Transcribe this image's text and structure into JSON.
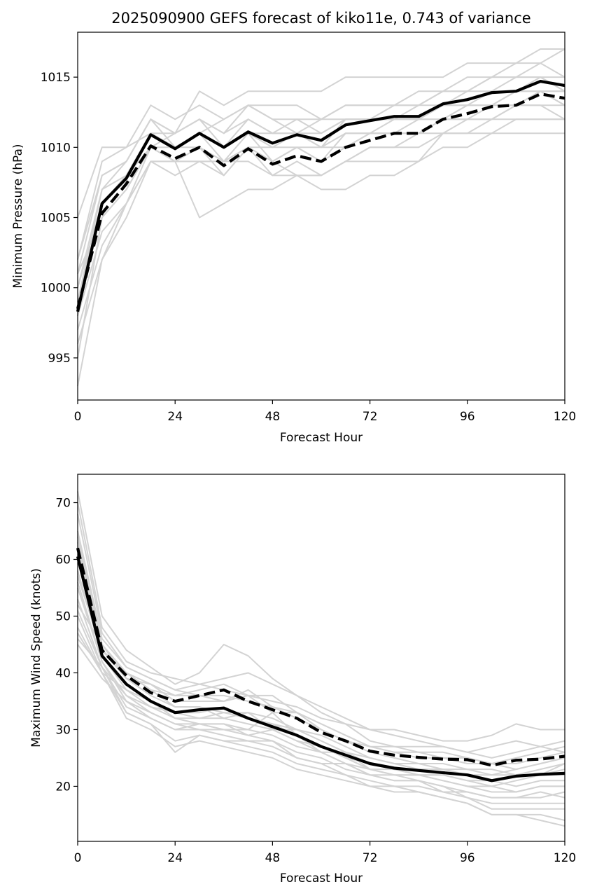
{
  "figure": {
    "title": "2025090900 GEFS forecast of kiko11e, 0.743 of variance"
  },
  "colors": {
    "member": "#d3d3d3",
    "mean": "#000000",
    "background": "#ffffff"
  },
  "chart_data": [
    {
      "type": "line",
      "name": "pressure",
      "title": "2025090900 GEFS forecast of kiko11e, 0.743 of variance",
      "xlabel": "Forecast Hour",
      "ylabel": "Minimum Pressure (hPa)",
      "xlim": [
        0,
        120
      ],
      "ylim": [
        992,
        1018.2
      ],
      "xticks": [
        0,
        24,
        48,
        72,
        96,
        120
      ],
      "yticks": [
        995,
        1000,
        1005,
        1010,
        1015
      ],
      "x": [
        0,
        6,
        12,
        18,
        24,
        30,
        36,
        42,
        48,
        54,
        60,
        66,
        72,
        78,
        84,
        90,
        96,
        102,
        108,
        114,
        120
      ],
      "series": [
        {
          "name": "solid",
          "style": "solid",
          "values": [
            998.3,
            1006,
            1007.8,
            1010.9,
            1009.9,
            1011,
            1010,
            1011.1,
            1010.3,
            1010.9,
            1010.5,
            1011.6,
            1011.9,
            1012.2,
            1012.2,
            1013.1,
            1013.4,
            1013.9,
            1014.0,
            1014.7,
            1014.4
          ]
        },
        {
          "name": "dashed",
          "style": "dashed",
          "values": [
            998.5,
            1005.3,
            1007.4,
            1010.1,
            1009.2,
            1010,
            1008.7,
            1009.9,
            1008.8,
            1009.4,
            1009.0,
            1010.0,
            1010.5,
            1011.0,
            1011.0,
            1012.0,
            1012.4,
            1012.9,
            1013.0,
            1013.8,
            1013.5
          ]
        }
      ],
      "members": [
        [
          1005,
          1010,
          1010,
          1011,
          1011,
          1014,
          1013,
          1014,
          1014,
          1014,
          1014,
          1015,
          1015,
          1015,
          1015,
          1015,
          1016,
          1016,
          1016,
          1017,
          1017
        ],
        [
          1002,
          1009,
          1010,
          1013,
          1012,
          1013,
          1012,
          1013,
          1013,
          1013,
          1012,
          1013,
          1013,
          1013,
          1014,
          1014,
          1015,
          1015,
          1016,
          1016,
          1017
        ],
        [
          1001,
          1008,
          1009,
          1012,
          1011,
          1012,
          1011,
          1013,
          1012,
          1012,
          1012,
          1012,
          1012,
          1013,
          1013,
          1014,
          1014,
          1015,
          1015,
          1016,
          1015
        ],
        [
          1000,
          1007,
          1008,
          1011,
          1010,
          1011,
          1010,
          1012,
          1011,
          1011,
          1011,
          1012,
          1012,
          1012,
          1012,
          1013,
          1013,
          1014,
          1014,
          1015,
          1014
        ],
        [
          999,
          1006,
          1008,
          1011,
          1010,
          1010,
          1009,
          1011,
          1010,
          1011,
          1010,
          1011,
          1011,
          1012,
          1012,
          1012,
          1013,
          1013,
          1014,
          1014,
          1013
        ],
        [
          998,
          1004,
          1006,
          1010,
          1010,
          1011,
          1010,
          1011,
          1009,
          1010,
          1009,
          1010,
          1011,
          1011,
          1011,
          1012,
          1012,
          1012,
          1013,
          1013,
          1012
        ],
        [
          997,
          1003,
          1006,
          1009,
          1009,
          1005,
          1006,
          1007,
          1007,
          1008,
          1007,
          1007,
          1008,
          1008,
          1009,
          1010,
          1010,
          1011,
          1011,
          1011,
          1011
        ],
        [
          996,
          1002,
          1005,
          1009,
          1008,
          1009,
          1008,
          1010,
          1009,
          1008,
          1008,
          1009,
          1009,
          1009,
          1009,
          1011,
          1011,
          1011,
          1012,
          1012,
          1012
        ],
        [
          995,
          1005,
          1007,
          1010,
          1009,
          1009,
          1009,
          1010,
          1008,
          1009,
          1008,
          1009,
          1010,
          1010,
          1011,
          1011,
          1012,
          1012,
          1013,
          1013,
          1013
        ],
        [
          993,
          1002,
          1006,
          1009,
          1009,
          1009,
          1009,
          1009,
          1008,
          1008,
          1008,
          1009,
          1010,
          1010,
          1010,
          1011,
          1011,
          1012,
          1012,
          1012,
          1012
        ],
        [
          1000,
          1006,
          1008,
          1010,
          1011,
          1012,
          1011,
          1012,
          1011,
          1012,
          1011,
          1012,
          1012,
          1012,
          1013,
          1013,
          1014,
          1014,
          1015,
          1015,
          1014
        ],
        [
          999,
          1007,
          1009,
          1012,
          1010,
          1011,
          1012,
          1013,
          1012,
          1011,
          1012,
          1013,
          1013,
          1013,
          1013,
          1014,
          1014,
          1015,
          1015,
          1015,
          1015
        ],
        [
          1001,
          1005,
          1007,
          1010,
          1009,
          1010,
          1008,
          1010,
          1009,
          1010,
          1010,
          1010,
          1011,
          1011,
          1011,
          1012,
          1013,
          1013,
          1013,
          1014,
          1014
        ],
        [
          998,
          1006,
          1008,
          1011,
          1010,
          1011,
          1009,
          1010,
          1010,
          1010,
          1009,
          1011,
          1011,
          1011,
          1012,
          1012,
          1012,
          1013,
          1013,
          1014,
          1014
        ],
        [
          1002,
          1008,
          1009,
          1012,
          1011,
          1012,
          1010,
          1011,
          1011,
          1011,
          1010,
          1012,
          1012,
          1012,
          1012,
          1013,
          1013,
          1013,
          1014,
          1014,
          1013
        ]
      ]
    },
    {
      "type": "line",
      "name": "wind",
      "title": "",
      "xlabel": "Forecast Hour",
      "ylabel": "Maximum Wind Speed (knots)",
      "xlim": [
        0,
        120
      ],
      "ylim": [
        10.3,
        75
      ],
      "xticks": [
        0,
        24,
        48,
        72,
        96,
        120
      ],
      "yticks": [
        20,
        30,
        40,
        50,
        60,
        70
      ],
      "x": [
        0,
        6,
        12,
        18,
        24,
        30,
        36,
        42,
        48,
        54,
        60,
        66,
        72,
        78,
        84,
        90,
        96,
        102,
        108,
        114,
        120
      ],
      "series": [
        {
          "name": "solid",
          "style": "solid",
          "values": [
            60.5,
            43,
            38,
            35,
            33,
            33.5,
            33.8,
            32,
            30.5,
            29,
            27,
            25.5,
            24,
            23.2,
            22.8,
            22.4,
            22,
            21,
            21.8,
            22.1,
            22.3
          ]
        },
        {
          "name": "dashed",
          "style": "dashed",
          "values": [
            62,
            44,
            39.5,
            36.5,
            35,
            36,
            37,
            35,
            33.5,
            32,
            29.5,
            28,
            26.2,
            25.5,
            25.1,
            24.8,
            24.7,
            23.7,
            24.6,
            24.8,
            25.3
          ]
        }
      ],
      "members": [
        [
          72,
          50,
          44,
          41,
          38,
          40,
          45,
          43,
          39,
          36,
          33,
          31,
          30,
          30,
          29,
          28,
          28,
          29,
          31,
          30,
          30
        ],
        [
          70,
          48,
          42,
          40,
          39,
          38,
          39,
          40,
          38,
          36,
          34,
          32,
          30,
          29,
          28,
          27,
          26,
          27,
          28,
          27,
          26
        ],
        [
          65,
          46,
          41,
          39,
          37,
          38,
          37,
          36,
          35,
          34,
          32,
          31,
          28,
          27,
          27,
          27,
          26,
          25,
          26,
          27,
          28
        ],
        [
          64,
          45,
          40,
          38,
          36,
          36,
          36,
          35,
          34,
          33,
          31,
          29,
          27,
          26,
          25,
          25,
          24,
          24,
          23,
          24,
          25
        ],
        [
          63,
          44,
          39,
          38,
          35,
          35,
          35,
          36,
          33,
          33,
          30,
          28,
          26,
          25,
          24,
          24,
          23,
          23,
          22,
          23,
          24
        ],
        [
          62,
          44,
          40,
          37,
          34,
          34,
          33,
          33,
          32,
          30,
          29,
          27,
          25,
          24,
          23,
          23,
          22,
          22,
          22,
          22,
          23
        ],
        [
          60,
          43,
          38,
          35,
          33,
          33,
          34,
          32,
          31,
          30,
          28,
          26,
          24,
          23,
          22,
          22,
          21,
          21,
          20,
          21,
          21
        ],
        [
          58,
          43,
          37,
          35,
          32,
          32,
          32,
          31,
          30,
          28,
          27,
          25,
          23,
          22,
          22,
          21,
          20,
          19,
          19,
          20,
          20
        ],
        [
          56,
          42,
          36,
          34,
          32,
          31,
          31,
          30,
          29,
          27,
          26,
          24,
          22,
          22,
          21,
          20,
          19,
          18,
          18,
          18,
          19
        ],
        [
          55,
          42,
          35,
          33,
          31,
          31,
          30,
          29,
          28,
          26,
          25,
          23,
          22,
          21,
          21,
          20,
          18,
          17,
          17,
          17,
          17
        ],
        [
          53,
          41,
          34,
          32,
          30,
          30,
          29,
          28,
          27,
          25,
          24,
          22,
          21,
          20,
          20,
          19,
          18,
          16,
          16,
          16,
          16
        ],
        [
          51,
          41,
          33,
          31,
          28,
          29,
          28,
          27,
          26,
          24,
          23,
          22,
          20,
          20,
          19,
          18,
          17,
          15,
          15,
          15,
          14
        ],
        [
          50,
          40,
          32,
          30,
          27,
          28,
          27,
          26,
          25,
          23,
          22,
          21,
          20,
          19,
          19,
          18,
          17,
          15,
          15,
          14,
          13
        ],
        [
          48,
          40,
          33,
          31,
          26,
          29,
          28,
          28,
          28,
          25,
          24,
          24,
          22,
          21,
          21,
          19,
          19,
          18,
          18,
          19,
          18
        ],
        [
          46,
          41,
          36,
          33,
          31,
          30,
          30,
          30,
          33,
          29,
          26,
          26,
          23,
          23,
          22,
          21,
          20,
          20,
          19,
          20,
          20
        ],
        [
          45,
          39,
          35,
          32,
          30,
          31,
          31,
          29,
          30,
          28,
          26,
          24,
          23,
          22,
          22,
          22,
          21,
          20,
          21,
          22,
          22
        ],
        [
          47,
          40,
          37,
          34,
          33,
          32,
          33,
          32,
          31,
          29,
          27,
          25,
          24,
          23,
          23,
          23,
          22,
          21,
          22,
          22,
          24
        ],
        [
          52,
          45,
          39,
          36,
          34,
          34,
          32,
          33,
          30,
          30,
          28,
          26,
          25,
          24,
          24,
          23,
          23,
          22,
          23,
          24,
          25
        ],
        [
          57,
          44,
          40,
          37,
          36,
          37,
          38,
          36,
          36,
          33,
          31,
          29,
          27,
          27,
          26,
          26,
          25,
          24,
          24,
          25,
          26
        ],
        [
          68,
          47,
          41,
          39,
          37,
          36,
          35,
          37,
          34,
          32,
          30,
          28,
          27,
          26,
          26,
          25,
          25,
          24,
          25,
          26,
          27
        ]
      ]
    }
  ]
}
